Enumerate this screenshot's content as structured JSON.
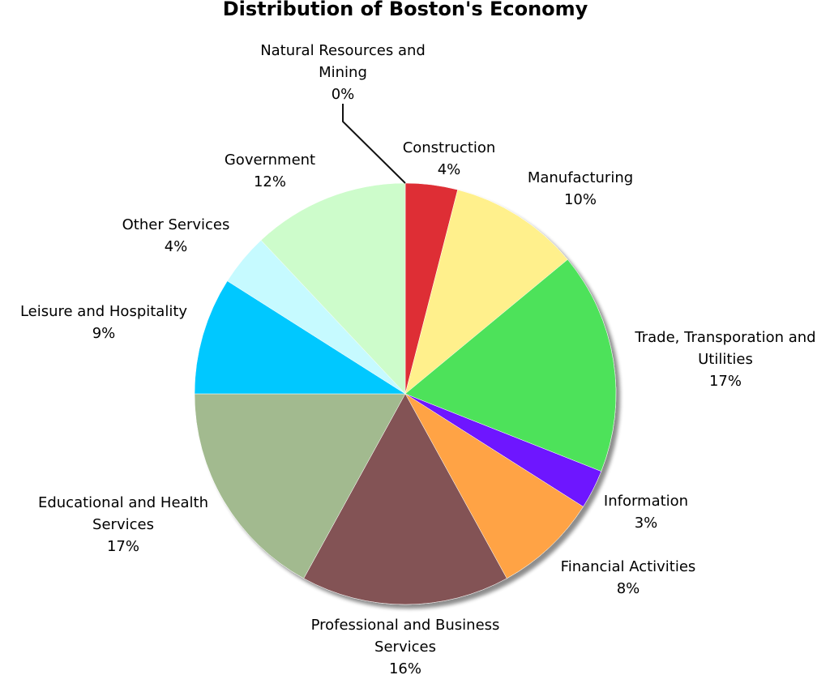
{
  "chart_data": {
    "type": "pie",
    "title": "Distribution of Boston's Economy",
    "slices": [
      {
        "category": "Construction",
        "value": 4,
        "color": "#de2f35",
        "label_lines": [
          "Construction"
        ],
        "value_label": "4%"
      },
      {
        "category": "Manufacturing",
        "value": 10,
        "color": "#fff08c",
        "label_lines": [
          "Manufacturing"
        ],
        "value_label": "10%"
      },
      {
        "category": "Trade, Transporation and Utilities",
        "value": 17,
        "color": "#4ee25a",
        "label_lines": [
          "Trade, Transporation and",
          "Utilities"
        ],
        "value_label": "17%"
      },
      {
        "category": "Information",
        "value": 3,
        "color": "#6e14ff",
        "label_lines": [
          "Information"
        ],
        "value_label": "3%"
      },
      {
        "category": "Financial Activities",
        "value": 8,
        "color": "#ffa345",
        "label_lines": [
          "Financial Activities"
        ],
        "value_label": "8%"
      },
      {
        "category": "Professional and Business Services",
        "value": 16,
        "color": "#835354",
        "label_lines": [
          "Professional and Business",
          "Services"
        ],
        "value_label": "16%"
      },
      {
        "category": "Educational and Health Services",
        "value": 17,
        "color": "#a2ba8f",
        "label_lines": [
          "Educational and Health",
          "Services"
        ],
        "value_label": "17%"
      },
      {
        "category": "Leisure and Hospitality",
        "value": 9,
        "color": "#00c8ff",
        "label_lines": [
          "Leisure and Hospitality"
        ],
        "value_label": "9%"
      },
      {
        "category": "Other Services",
        "value": 4,
        "color": "#c6faff",
        "label_lines": [
          "Other Services"
        ],
        "value_label": "4%"
      },
      {
        "category": "Government",
        "value": 12,
        "color": "#cdfccb",
        "label_lines": [
          "Government"
        ],
        "value_label": "12%"
      },
      {
        "category": "Natural Resources and Mining",
        "value": 0,
        "color": "#1a1a1a",
        "label_lines": [
          "Natural Resources and",
          "Mining"
        ],
        "value_label": "0%"
      }
    ]
  }
}
